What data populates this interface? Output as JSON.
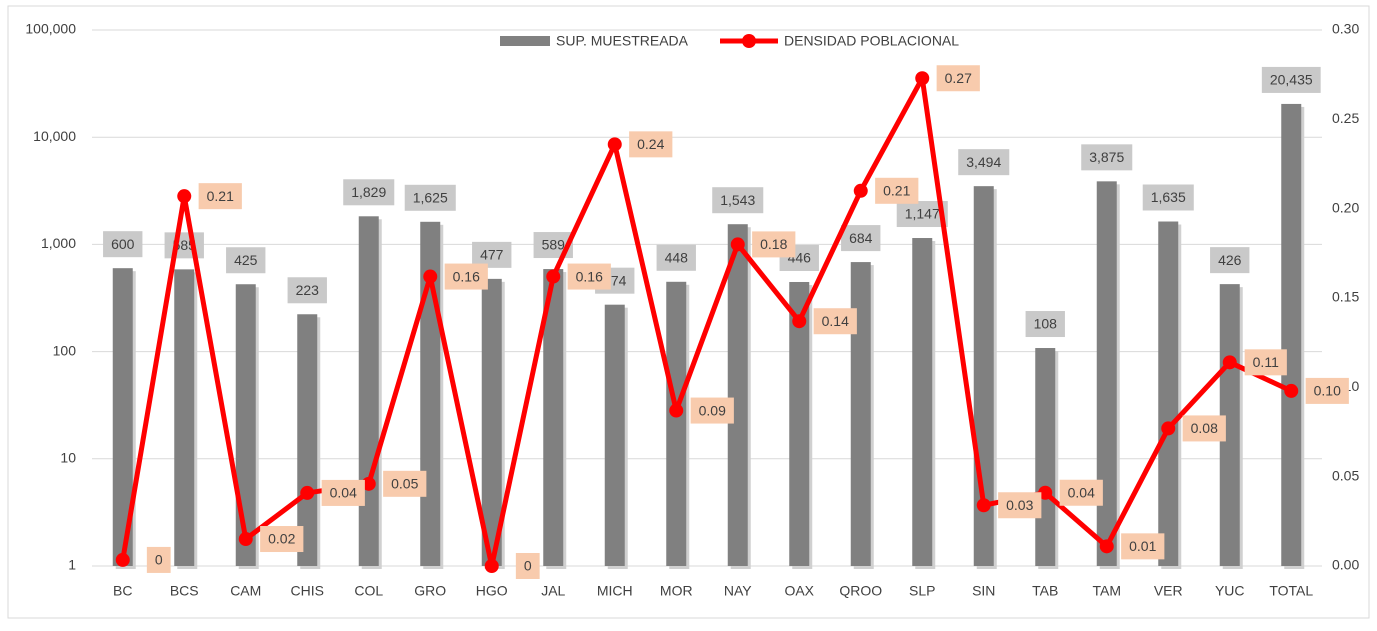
{
  "chart_data": {
    "type": "bar_line",
    "categories": [
      "BC",
      "BCS",
      "CAM",
      "CHIS",
      "COL",
      "GRO",
      "HGO",
      "JAL",
      "MICH",
      "MOR",
      "NAY",
      "OAX",
      "QROO",
      "SLP",
      "SIN",
      "TAB",
      "TAM",
      "VER",
      "YUC",
      "TOTAL"
    ],
    "series": [
      {
        "name": "SUP. MUESTREADA",
        "type": "bar",
        "color": "#808080",
        "values": [
          600,
          585,
          425,
          223,
          1829,
          1625,
          477,
          589,
          274,
          448,
          1543,
          446,
          684,
          1147,
          3494,
          108,
          3875,
          1635,
          426,
          20435
        ],
        "value_labels": [
          "600",
          "585",
          "425",
          "223",
          "1,829",
          "1,625",
          "477",
          "589",
          "274",
          "448",
          "1,543",
          "446",
          "684",
          "1,147",
          "3,494",
          "108",
          "3,875",
          "1,635",
          "426",
          "20,435"
        ]
      },
      {
        "name": "DENSIDAD POBLACIONAL",
        "type": "line",
        "axis": "y2",
        "color": "#ff0000",
        "values": [
          0.0034,
          0.207,
          0.0151,
          0.0409,
          0.046,
          0.162,
          0,
          0.162,
          0.236,
          0.087,
          0.18,
          0.137,
          0.21,
          0.273,
          0.034,
          0.041,
          0.011,
          0.077,
          0.114,
          0.098
        ],
        "value_labels": [
          "0",
          "0.21",
          "0.02",
          "0.04",
          "0.05",
          "0.16",
          "0",
          "0.16",
          "0.24",
          "0.09",
          "0.18",
          "0.14",
          "0.21",
          "0.27",
          "0.03",
          "0.04",
          "0.01",
          "0.08",
          "0.11",
          "0.10"
        ]
      }
    ],
    "ylim": [
      1,
      100000
    ],
    "log_y": true,
    "yticks": [
      1,
      10,
      100,
      {
        "value": 1000,
        "label": "1,000"
      },
      {
        "value": 10000,
        "label": "10,000"
      },
      {
        "value": 100000,
        "label": "100,000"
      }
    ],
    "y2lim": [
      0,
      0.3
    ],
    "y2ticks": [
      {
        "value": 0,
        "label": "0.00"
      },
      {
        "value": 0.05,
        "label": "0.05"
      },
      {
        "value": 0.1,
        "label": "0.10"
      },
      {
        "value": 0.15,
        "label": "0.15"
      },
      {
        "value": 0.2,
        "label": "0.20"
      },
      {
        "value": 0.25,
        "label": "0.25"
      },
      {
        "value": 0.3,
        "label": "0.30"
      }
    ],
    "grid": true,
    "legend": "top"
  }
}
